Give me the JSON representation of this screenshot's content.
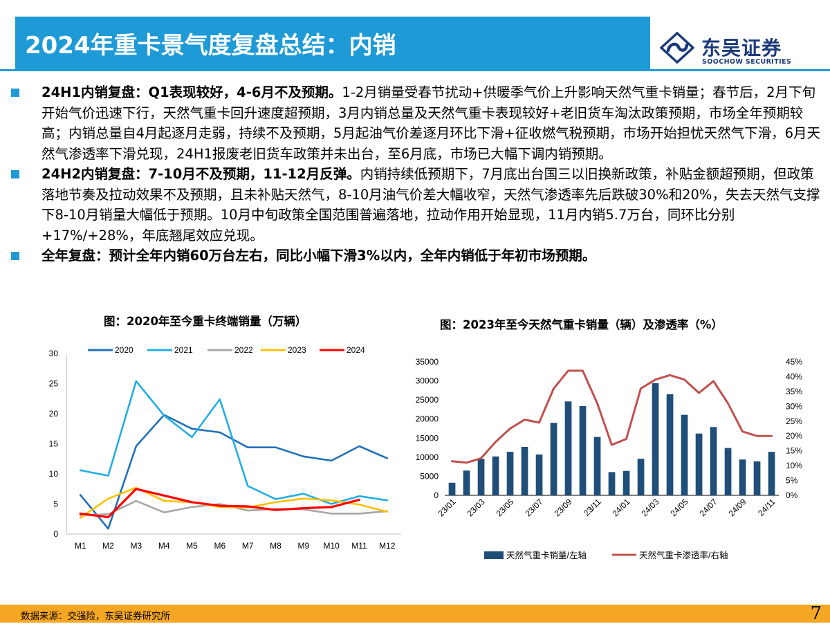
{
  "header": {
    "title": "2024年重卡景气度复盘总结：内销",
    "logo_cn": "东吴证券",
    "logo_en": "SOOCHOW SECURITIES"
  },
  "bullets": [
    {
      "head": "24H1内销复盘：Q1表现较好，4-6月不及预期。",
      "body": "1-2月销量受春节扰动+供暖季气价上升影响天然气重卡销量；春节后，2月下旬开始气价迅速下行，天然气重卡回升速度超预期，3月内销总量及天然气重卡表现较好+老旧货车淘汰政策预期，市场全年预期较高；内销总量自4月起逐月走弱，持续不及预期，5月起油气价差逐月环比下滑+征收燃气税预期，市场开始担忧天然气下滑，6月天然气渗透率下滑兑现，24H1报废老旧货车政策并未出台，至6月底，市场已大幅下调内销预期。"
    },
    {
      "head": "24H2内销复盘：7-10月不及预期，11-12月反弹。",
      "body": "内销持续低预期下，7月底出台国三以旧换新政策，补贴金额超预期，但政策落地节奏及拉动效果不及预期，且未补贴天然气，8-10月油气价差大幅收窄，天然气渗透率先后跌破30%和20%，失去天然气支撑下8-10月销量大幅低于预期。10月中旬政策全国范围普遍落地，拉动作用开始显现，11月内销5.7万台，同环比分别+17%/+28%，年底翘尾效应兑现。"
    },
    {
      "head": "全年复盘：预计全年内销60万台左右，同比小幅下滑3%以内，全年内销低于年初市场预期。",
      "body": ""
    }
  ],
  "chart_data": [
    {
      "type": "line",
      "title": "图：2020年至今重卡终端销量（万辆）",
      "categories": [
        "M1",
        "M2",
        "M3",
        "M4",
        "M5",
        "M6",
        "M7",
        "M8",
        "M9",
        "M10",
        "M11",
        "M12"
      ],
      "ylim": [
        0,
        30
      ],
      "yticks": [
        0,
        5,
        10,
        15,
        20,
        25,
        30
      ],
      "legend_position": "top",
      "grid": false,
      "series": [
        {
          "name": "2020",
          "color": "#1f6fb8",
          "values": [
            6.5,
            0.9,
            14.6,
            19.8,
            17.5,
            16.9,
            14.4,
            14.4,
            12.9,
            12.2,
            14.6,
            12.6
          ]
        },
        {
          "name": "2021",
          "color": "#21ade6",
          "values": [
            10.6,
            9.7,
            25.4,
            19.7,
            16.1,
            22.4,
            8.0,
            5.8,
            6.7,
            5.0,
            6.3,
            5.6
          ]
        },
        {
          "name": "2022",
          "color": "#a6a6a6",
          "values": [
            3.1,
            3.3,
            5.5,
            3.6,
            4.5,
            5.0,
            3.9,
            4.2,
            4.1,
            3.4,
            3.4,
            3.8
          ]
        },
        {
          "name": "2023",
          "color": "#ffc000",
          "values": [
            2.7,
            5.9,
            7.7,
            5.5,
            5.3,
            4.5,
            4.4,
            5.3,
            5.9,
            5.6,
            4.9,
            3.7
          ]
        },
        {
          "name": "2024",
          "color": "#ff0000",
          "values": [
            3.4,
            2.8,
            7.5,
            6.4,
            5.3,
            4.7,
            4.6,
            4.0,
            4.3,
            4.5,
            5.7,
            null
          ]
        }
      ]
    },
    {
      "type": "bar",
      "title": "图：2023年至今天然气重卡销量（辆）及渗透率（%）",
      "x": [
        "23/01",
        "23/02",
        "23/03",
        "23/04",
        "23/05",
        "23/06",
        "23/07",
        "23/08",
        "23/09",
        "23/10",
        "23/11",
        "23/12",
        "24/01",
        "24/02",
        "24/03",
        "24/04",
        "24/05",
        "24/06",
        "24/07",
        "24/08",
        "24/09",
        "24/10",
        "24/11"
      ],
      "xtick_labels": [
        "23/01",
        "23/03",
        "23/05",
        "23/07",
        "23/09",
        "23/11",
        "24/01",
        "24/03",
        "24/05",
        "24/07",
        "24/09",
        "24/11"
      ],
      "ylim": [
        0,
        35000
      ],
      "yticks": [
        0,
        5000,
        10000,
        15000,
        20000,
        25000,
        30000,
        35000
      ],
      "y2lim": [
        0,
        45
      ],
      "y2ticks": [
        "0%",
        "5%",
        "10%",
        "15%",
        "20%",
        "25%",
        "30%",
        "35%",
        "40%",
        "45%"
      ],
      "legend_position": "bottom",
      "grid": false,
      "series": [
        {
          "name": "天然气重卡销量/左轴",
          "type": "bar",
          "axis": "left",
          "color": "#1f4e79",
          "values": [
            3300,
            6500,
            9600,
            10200,
            11400,
            12700,
            10700,
            19000,
            24600,
            23400,
            15300,
            6100,
            6400,
            9600,
            29400,
            26500,
            21100,
            16200,
            17900,
            12400,
            9400,
            8900,
            11400
          ]
        },
        {
          "name": "天然气重卡渗透率/右轴",
          "type": "line",
          "axis": "right",
          "color": "#c0504d",
          "values": [
            11.5,
            11.0,
            12.5,
            18.0,
            22.5,
            25.5,
            24.5,
            36.0,
            42.0,
            42.0,
            31.0,
            17.0,
            19.0,
            36.0,
            39.0,
            40.5,
            39.0,
            34.5,
            38.5,
            31.0,
            21.5,
            20.0,
            20.0
          ]
        }
      ]
    }
  ],
  "footer": {
    "source": "数据来源：交强险，东吴证券研究所",
    "page_number": "7"
  }
}
